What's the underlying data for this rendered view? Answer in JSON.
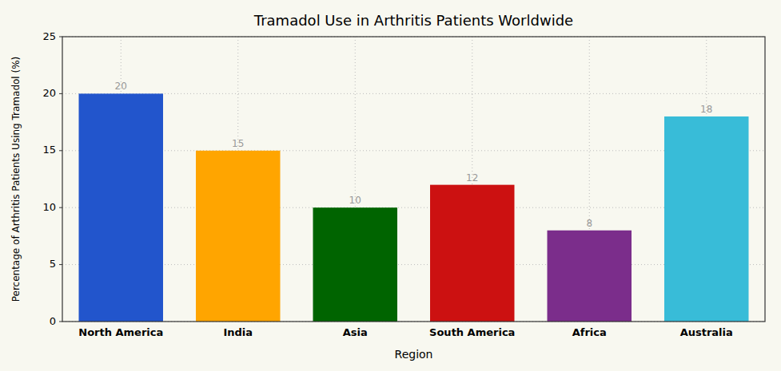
{
  "chart_data": {
    "type": "bar",
    "title": "Tramadol Use in Arthritis Patients Worldwide",
    "xlabel": "Region",
    "ylabel": "Percentage of Arthritis Patients Using Tramadol (%)",
    "categories": [
      "North America",
      "India",
      "Asia",
      "South America",
      "Africa",
      "Australia"
    ],
    "values": [
      20,
      15,
      10,
      12,
      8,
      18
    ],
    "colors": [
      "#2255CC",
      "#FFA500",
      "#006400",
      "#CC1111",
      "#7B2D8B",
      "#38BCD8"
    ],
    "ylim": [
      0,
      25
    ],
    "yticks": [
      0,
      5,
      10,
      15,
      20,
      25
    ],
    "grid": true,
    "data_labels": true
  }
}
